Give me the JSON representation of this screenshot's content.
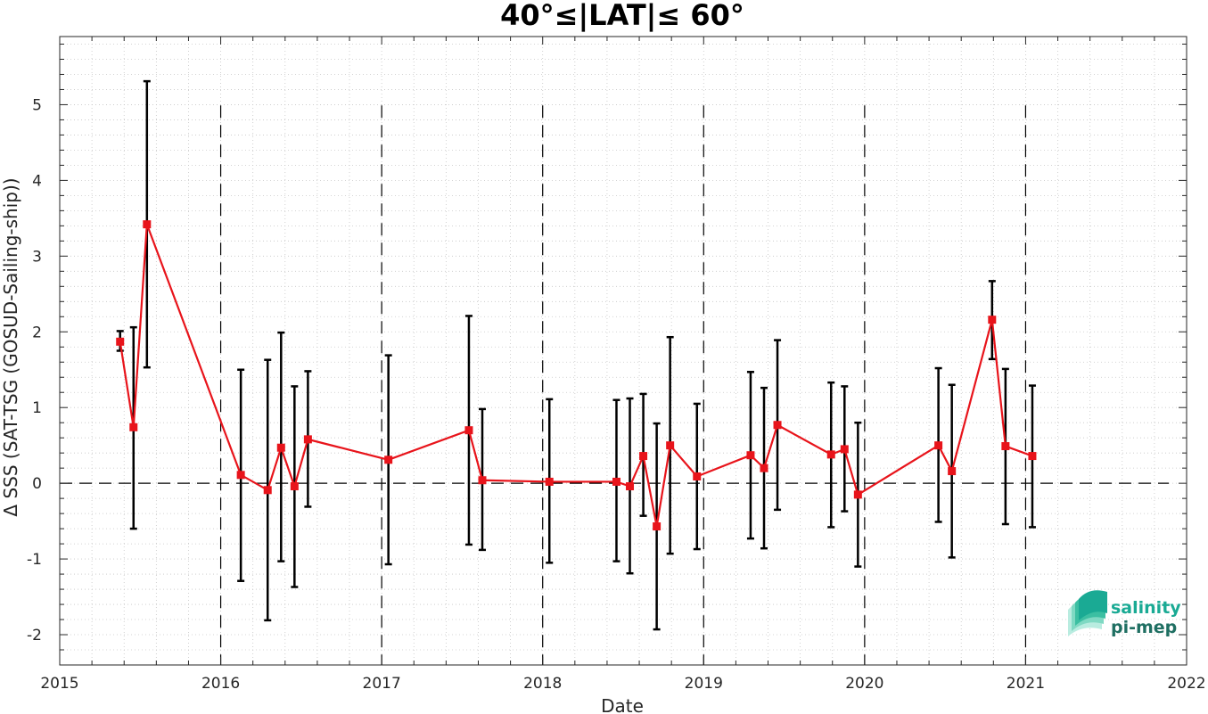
{
  "chart_data": {
    "type": "line",
    "title": "40°≤|LAT|≤ 60°",
    "xlabel": "Date",
    "ylabel": "Δ SSS (SAT-TSG (GOSUD-Sailing-ship))",
    "xlim": [
      2015,
      2022
    ],
    "ylim": [
      -2.4,
      5.9
    ],
    "x_ticks": [
      "2015",
      "2016",
      "2017",
      "2018",
      "2019",
      "2020",
      "2021",
      "2022"
    ],
    "y_ticks": [
      "-2",
      "-1",
      "0",
      "1",
      "2",
      "3",
      "4",
      "5"
    ],
    "grid": "minor dotted",
    "year_boundaries": [
      2016,
      2017,
      2018,
      2019,
      2020,
      2021
    ],
    "zero_line": 0,
    "series": [
      {
        "color": "#e8141b",
        "marker": "square",
        "errorbar_color": "#000000",
        "points": [
          {
            "x": "2015-05",
            "y": 1.87,
            "err_low": 1.75,
            "err_high": 2.01
          },
          {
            "x": "2015-06",
            "y": 0.74,
            "err_low": -0.6,
            "err_high": 2.06
          },
          {
            "x": "2015-07",
            "y": 3.42,
            "err_low": 1.53,
            "err_high": 5.31
          },
          {
            "x": "2016-02",
            "y": 0.11,
            "err_low": -1.29,
            "err_high": 1.5
          },
          {
            "x": "2016-04",
            "y": -0.09,
            "err_low": -1.81,
            "err_high": 1.63
          },
          {
            "x": "2016-05",
            "y": 0.47,
            "err_low": -1.03,
            "err_high": 1.99
          },
          {
            "x": "2016-06",
            "y": -0.04,
            "err_low": -1.37,
            "err_high": 1.28
          },
          {
            "x": "2016-07",
            "y": 0.58,
            "err_low": -0.31,
            "err_high": 1.48
          },
          {
            "x": "2017-01",
            "y": 0.31,
            "err_low": -1.07,
            "err_high": 1.69
          },
          {
            "x": "2017-07",
            "y": 0.7,
            "err_low": -0.81,
            "err_high": 2.21
          },
          {
            "x": "2017-08",
            "y": 0.04,
            "err_low": -0.88,
            "err_high": 0.98
          },
          {
            "x": "2018-01",
            "y": 0.02,
            "err_low": -1.05,
            "err_high": 1.11
          },
          {
            "x": "2018-06",
            "y": 0.02,
            "err_low": -1.03,
            "err_high": 1.1
          },
          {
            "x": "2018-07",
            "y": -0.04,
            "err_low": -1.19,
            "err_high": 1.12
          },
          {
            "x": "2018-08",
            "y": 0.36,
            "err_low": -0.43,
            "err_high": 1.18
          },
          {
            "x": "2018-09",
            "y": -0.57,
            "err_low": -1.93,
            "err_high": 0.79
          },
          {
            "x": "2018-10",
            "y": 0.5,
            "err_low": -0.93,
            "err_high": 1.93
          },
          {
            "x": "2018-12",
            "y": 0.09,
            "err_low": -0.87,
            "err_high": 1.05
          },
          {
            "x": "2019-04",
            "y": 0.37,
            "err_low": -0.73,
            "err_high": 1.47
          },
          {
            "x": "2019-05",
            "y": 0.2,
            "err_low": -0.86,
            "err_high": 1.26
          },
          {
            "x": "2019-06",
            "y": 0.77,
            "err_low": -0.35,
            "err_high": 1.89
          },
          {
            "x": "2019-10",
            "y": 0.38,
            "err_low": -0.58,
            "err_high": 1.33
          },
          {
            "x": "2019-11",
            "y": 0.45,
            "err_low": -0.37,
            "err_high": 1.28
          },
          {
            "x": "2019-12",
            "y": -0.15,
            "err_low": -1.1,
            "err_high": 0.8
          },
          {
            "x": "2020-06",
            "y": 0.5,
            "err_low": -0.51,
            "err_high": 1.52
          },
          {
            "x": "2020-07",
            "y": 0.16,
            "err_low": -0.98,
            "err_high": 1.3
          },
          {
            "x": "2020-10",
            "y": 2.16,
            "err_low": 1.64,
            "err_high": 2.67
          },
          {
            "x": "2020-11",
            "y": 0.49,
            "err_low": -0.54,
            "err_high": 1.51
          },
          {
            "x": "2021-01",
            "y": 0.36,
            "err_low": -0.58,
            "err_high": 1.29
          }
        ]
      }
    ]
  },
  "logo": {
    "line1": "salinity",
    "line2": "pi-mep",
    "color_primary": "#1aaa94",
    "color_secondary": "#1f6f62"
  }
}
